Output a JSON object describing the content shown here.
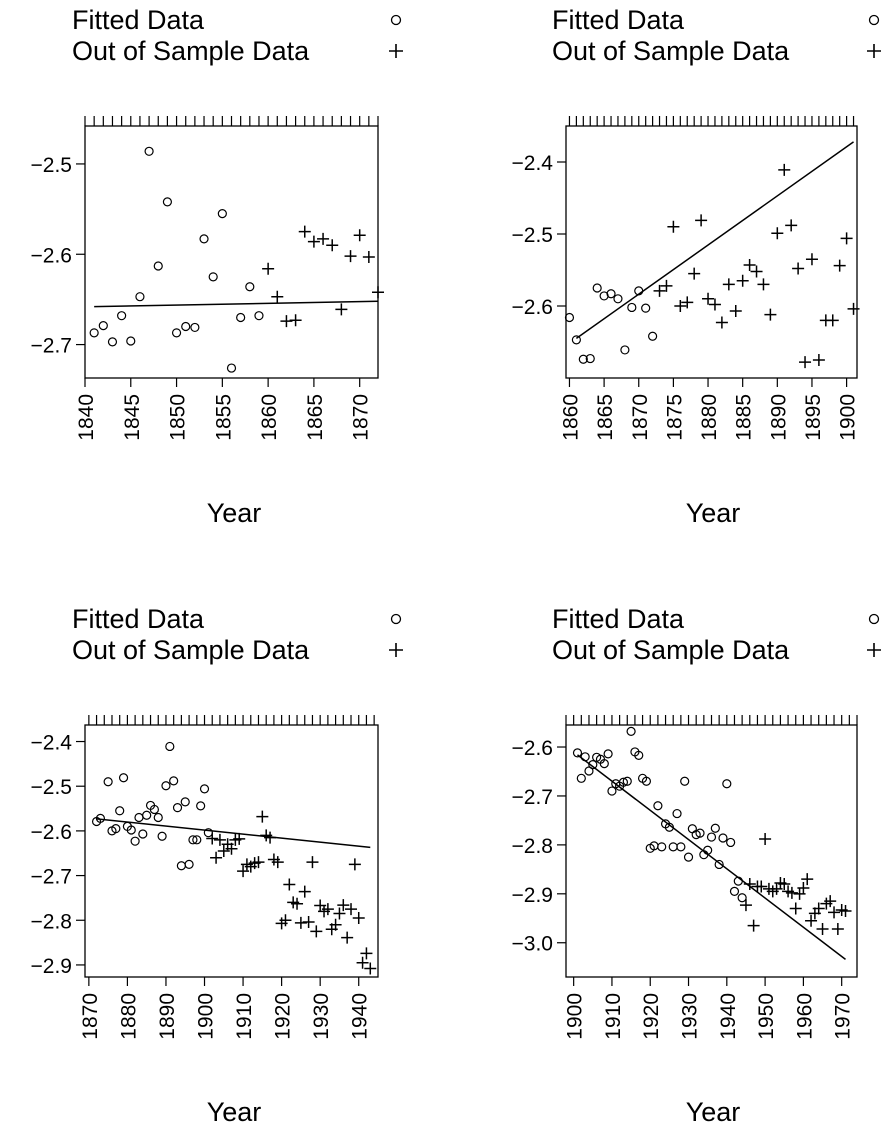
{
  "legend": {
    "fitted_label": "Fitted Data",
    "oos_label": "Out of Sample Data"
  },
  "chart_data": [
    {
      "type": "scatter",
      "xlabel": "Year",
      "ylabel": "",
      "xlim": [
        1840,
        1872
      ],
      "ylim": [
        -2.737,
        -2.458
      ],
      "xticks": [
        1840,
        1845,
        1850,
        1855,
        1860,
        1865,
        1870
      ],
      "yticks": [
        -2.5,
        -2.6,
        -2.7
      ],
      "grid": false,
      "series": [
        {
          "name": "Fitted Data",
          "marker": "circle",
          "x": [
            1841,
            1842,
            1843,
            1844,
            1845,
            1846,
            1847,
            1848,
            1849,
            1850,
            1851,
            1852,
            1853,
            1854,
            1855,
            1856,
            1857,
            1858,
            1859
          ],
          "y": [
            -2.687,
            -2.679,
            -2.697,
            -2.668,
            -2.696,
            -2.647,
            -2.486,
            -2.613,
            -2.542,
            -2.687,
            -2.68,
            -2.681,
            -2.583,
            -2.625,
            -2.555,
            -2.726,
            -2.67,
            -2.636,
            -2.668
          ]
        },
        {
          "name": "Out of Sample Data",
          "marker": "plus",
          "x": [
            1860,
            1861,
            1862,
            1863,
            1864,
            1865,
            1866,
            1867,
            1868,
            1869,
            1870,
            1871,
            1872
          ],
          "y": [
            -2.616,
            -2.647,
            -2.674,
            -2.673,
            -2.575,
            -2.586,
            -2.583,
            -2.59,
            -2.661,
            -2.602,
            -2.579,
            -2.603,
            -2.642
          ]
        },
        {
          "name": "",
          "marker": "line",
          "x": [
            1841,
            1872
          ],
          "y": [
            -2.658,
            -2.652
          ]
        }
      ]
    },
    {
      "type": "scatter",
      "xlabel": "Year",
      "ylabel": "",
      "xlim": [
        1859.5,
        1901.5
      ],
      "ylim": [
        -2.7,
        -2.35
      ],
      "xticks": [
        1860,
        1865,
        1870,
        1875,
        1880,
        1885,
        1890,
        1895,
        1900
      ],
      "yticks": [
        -2.4,
        -2.5,
        -2.6
      ],
      "grid": false,
      "series": [
        {
          "name": "Fitted Data",
          "marker": "circle",
          "x": [
            1860,
            1861,
            1862,
            1863,
            1864,
            1865,
            1866,
            1867,
            1868,
            1869,
            1870,
            1871,
            1872
          ],
          "y": [
            -2.616,
            -2.647,
            -2.674,
            -2.673,
            -2.575,
            -2.586,
            -2.583,
            -2.59,
            -2.661,
            -2.602,
            -2.579,
            -2.603,
            -2.642
          ]
        },
        {
          "name": "Out of Sample Data",
          "marker": "plus",
          "x": [
            1873,
            1874,
            1875,
            1876,
            1877,
            1878,
            1879,
            1880,
            1881,
            1882,
            1883,
            1884,
            1885,
            1886,
            1887,
            1888,
            1889,
            1890,
            1891,
            1892,
            1893,
            1894,
            1895,
            1896,
            1897,
            1898,
            1899,
            1900,
            1901
          ],
          "y": [
            -2.579,
            -2.572,
            -2.49,
            -2.6,
            -2.595,
            -2.555,
            -2.481,
            -2.59,
            -2.598,
            -2.623,
            -2.57,
            -2.607,
            -2.565,
            -2.543,
            -2.552,
            -2.57,
            -2.612,
            -2.499,
            -2.411,
            -2.488,
            -2.548,
            -2.678,
            -2.535,
            -2.675,
            -2.62,
            -2.62,
            -2.544,
            -2.506,
            -2.604
          ]
        },
        {
          "name": "",
          "marker": "line",
          "x": [
            1861,
            1901
          ],
          "y": [
            -2.645,
            -2.372
          ]
        }
      ]
    },
    {
      "type": "scatter",
      "xlabel": "Year",
      "ylabel": "",
      "xlim": [
        1869,
        1945
      ],
      "ylim": [
        -2.927,
        -2.363
      ],
      "xticks": [
        1870,
        1880,
        1890,
        1900,
        1910,
        1920,
        1930,
        1940
      ],
      "yticks": [
        -2.4,
        -2.5,
        -2.6,
        -2.7,
        -2.8,
        -2.9
      ],
      "grid": false,
      "series": [
        {
          "name": "Fitted Data",
          "marker": "circle",
          "x": [
            1872,
            1873,
            1875,
            1876,
            1877,
            1878,
            1879,
            1880,
            1881,
            1882,
            1883,
            1884,
            1885,
            1886,
            1887,
            1888,
            1889,
            1890,
            1891,
            1892,
            1893,
            1894,
            1895,
            1896,
            1897,
            1898,
            1899,
            1900,
            1901
          ],
          "y": [
            -2.579,
            -2.572,
            -2.49,
            -2.6,
            -2.595,
            -2.555,
            -2.481,
            -2.59,
            -2.598,
            -2.623,
            -2.57,
            -2.607,
            -2.565,
            -2.543,
            -2.552,
            -2.57,
            -2.612,
            -2.499,
            -2.411,
            -2.488,
            -2.548,
            -2.678,
            -2.535,
            -2.675,
            -2.62,
            -2.62,
            -2.544,
            -2.506,
            -2.604
          ]
        },
        {
          "name": "Out of Sample Data",
          "marker": "plus",
          "x": [
            1902,
            1903,
            1904,
            1905,
            1906,
            1907,
            1908,
            1909,
            1910,
            1911,
            1912,
            1913,
            1914,
            1915,
            1916,
            1917,
            1918,
            1919,
            1920,
            1921,
            1922,
            1923,
            1924,
            1925,
            1926,
            1927,
            1928,
            1929,
            1930,
            1931,
            1932,
            1933,
            1934,
            1935,
            1936,
            1937,
            1938,
            1939,
            1940,
            1941,
            1942,
            1943
          ],
          "y": [
            -2.617,
            -2.66,
            -2.62,
            -2.645,
            -2.63,
            -2.64,
            -2.62,
            -2.618,
            -2.69,
            -2.675,
            -2.68,
            -2.672,
            -2.67,
            -2.568,
            -2.61,
            -2.615,
            -2.664,
            -2.67,
            -2.807,
            -2.8,
            -2.72,
            -2.76,
            -2.763,
            -2.806,
            -2.736,
            -2.804,
            -2.67,
            -2.825,
            -2.767,
            -2.78,
            -2.775,
            -2.82,
            -2.81,
            -2.785,
            -2.766,
            -2.839,
            -2.775,
            -2.675,
            -2.795,
            -2.895,
            -2.874,
            -2.908
          ]
        },
        {
          "name": "",
          "marker": "line",
          "x": [
            1872,
            1943
          ],
          "y": [
            -2.573,
            -2.637
          ]
        }
      ]
    },
    {
      "type": "scatter",
      "xlabel": "Year",
      "ylabel": "",
      "xlim": [
        1898,
        1974
      ],
      "ylim": [
        -3.07,
        -2.555
      ],
      "xticks": [
        1900,
        1910,
        1920,
        1930,
        1940,
        1950,
        1960,
        1970
      ],
      "yticks": [
        -2.6,
        -2.7,
        -2.8,
        -2.9,
        -3.0
      ],
      "grid": false,
      "series": [
        {
          "name": "Fitted Data",
          "marker": "circle",
          "x": [
            1901,
            1902,
            1903,
            1904,
            1905,
            1906,
            1907,
            1908,
            1909,
            1910,
            1911,
            1912,
            1913,
            1914,
            1915,
            1916,
            1917,
            1918,
            1919,
            1920,
            1921,
            1922,
            1923,
            1924,
            1925,
            1926,
            1927,
            1928,
            1929,
            1930,
            1931,
            1932,
            1933,
            1934,
            1935,
            1936,
            1937,
            1938,
            1939,
            1940,
            1941,
            1942,
            1943,
            1944
          ],
          "y": [
            -2.612,
            -2.664,
            -2.62,
            -2.649,
            -2.636,
            -2.621,
            -2.625,
            -2.634,
            -2.614,
            -2.69,
            -2.675,
            -2.68,
            -2.672,
            -2.67,
            -2.568,
            -2.61,
            -2.617,
            -2.664,
            -2.67,
            -2.807,
            -2.802,
            -2.72,
            -2.804,
            -2.757,
            -2.764,
            -2.804,
            -2.736,
            -2.804,
            -2.67,
            -2.825,
            -2.767,
            -2.779,
            -2.776,
            -2.82,
            -2.811,
            -2.784,
            -2.766,
            -2.84,
            -2.786,
            -2.675,
            -2.795,
            -2.895,
            -2.874,
            -2.908
          ]
        },
        {
          "name": "Out of Sample Data",
          "marker": "plus",
          "x": [
            1945,
            1946,
            1947,
            1948,
            1949,
            1950,
            1951,
            1952,
            1953,
            1954,
            1955,
            1956,
            1957,
            1958,
            1959,
            1960,
            1961,
            1962,
            1963,
            1964,
            1965,
            1966,
            1967,
            1968,
            1969,
            1970,
            1971
          ],
          "y": [
            -2.923,
            -2.88,
            -2.965,
            -2.885,
            -2.885,
            -2.788,
            -2.89,
            -2.895,
            -2.89,
            -2.878,
            -2.88,
            -2.895,
            -2.898,
            -2.93,
            -2.9,
            -2.888,
            -2.87,
            -2.955,
            -2.94,
            -2.93,
            -2.972,
            -2.92,
            -2.915,
            -2.938,
            -2.972,
            -2.933,
            -2.935
          ]
        },
        {
          "name": "",
          "marker": "line",
          "x": [
            1901,
            1971
          ],
          "y": [
            -2.616,
            -3.034
          ]
        }
      ]
    }
  ]
}
